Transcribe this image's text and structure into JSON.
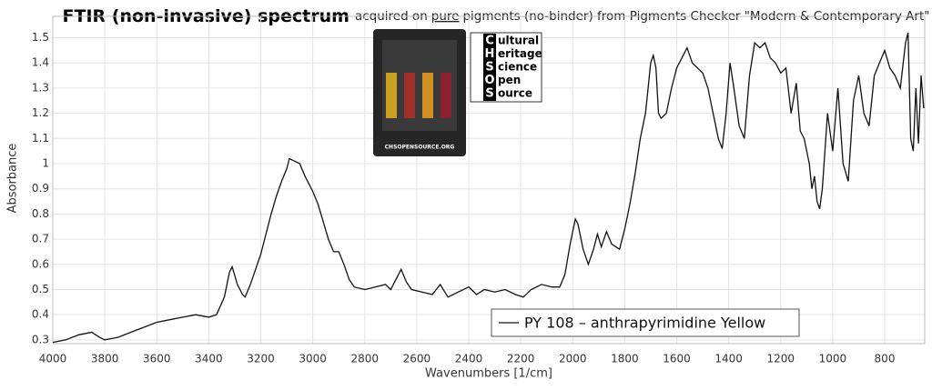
{
  "chart_data": {
    "type": "line",
    "title_bold": "FTIR (non-invasive) spectrum",
    "title_parts": [
      "acquired on",
      "pure",
      "pigments (no-binder) from Pigments Checker \"Modern & Contemporary Art\""
    ],
    "x_label": "Wavenumbers [1/cm]",
    "y_label": "Absorbance",
    "x": [
      4000,
      3950,
      3900,
      3850,
      3820,
      3800,
      3750,
      3700,
      3650,
      3600,
      3550,
      3500,
      3450,
      3400,
      3370,
      3340,
      3320,
      3310,
      3290,
      3270,
      3260,
      3240,
      3220,
      3200,
      3180,
      3160,
      3140,
      3120,
      3100,
      3090,
      3070,
      3050,
      3030,
      3000,
      2980,
      2960,
      2940,
      2920,
      2900,
      2880,
      2860,
      2840,
      2800,
      2760,
      2720,
      2700,
      2680,
      2660,
      2640,
      2620,
      2580,
      2540,
      2510,
      2480,
      2440,
      2400,
      2370,
      2340,
      2300,
      2260,
      2220,
      2190,
      2160,
      2120,
      2080,
      2050,
      2030,
      2010,
      1990,
      1980,
      1960,
      1940,
      1920,
      1905,
      1890,
      1870,
      1850,
      1820,
      1800,
      1780,
      1760,
      1740,
      1720,
      1710,
      1700,
      1690,
      1680,
      1670,
      1660,
      1640,
      1620,
      1600,
      1580,
      1560,
      1540,
      1520,
      1500,
      1480,
      1460,
      1440,
      1425,
      1410,
      1395,
      1380,
      1360,
      1340,
      1320,
      1300,
      1280,
      1260,
      1240,
      1220,
      1200,
      1180,
      1160,
      1140,
      1125,
      1110,
      1090,
      1080,
      1070,
      1060,
      1050,
      1040,
      1020,
      1000,
      980,
      960,
      940,
      920,
      900,
      880,
      860,
      840,
      820,
      800,
      780,
      760,
      740,
      720,
      710,
      700,
      690,
      680,
      670,
      660,
      650
    ],
    "series": [
      {
        "name": "PY 108 – anthrapyrimidine Yellow",
        "color": "#111111",
        "values": [
          0.29,
          0.3,
          0.32,
          0.33,
          0.31,
          0.3,
          0.31,
          0.33,
          0.35,
          0.37,
          0.38,
          0.39,
          0.4,
          0.39,
          0.4,
          0.47,
          0.57,
          0.59,
          0.52,
          0.48,
          0.47,
          0.52,
          0.58,
          0.64,
          0.72,
          0.8,
          0.87,
          0.93,
          0.98,
          1.02,
          1.01,
          1.0,
          0.95,
          0.89,
          0.84,
          0.77,
          0.7,
          0.65,
          0.65,
          0.6,
          0.54,
          0.51,
          0.5,
          0.51,
          0.52,
          0.5,
          0.54,
          0.58,
          0.53,
          0.5,
          0.49,
          0.48,
          0.52,
          0.47,
          0.49,
          0.51,
          0.48,
          0.5,
          0.49,
          0.5,
          0.48,
          0.47,
          0.5,
          0.52,
          0.51,
          0.51,
          0.56,
          0.68,
          0.78,
          0.76,
          0.66,
          0.6,
          0.66,
          0.72,
          0.67,
          0.73,
          0.68,
          0.66,
          0.74,
          0.84,
          0.96,
          1.1,
          1.2,
          1.3,
          1.4,
          1.43,
          1.38,
          1.2,
          1.18,
          1.2,
          1.3,
          1.38,
          1.42,
          1.46,
          1.4,
          1.38,
          1.36,
          1.3,
          1.2,
          1.1,
          1.06,
          1.2,
          1.4,
          1.3,
          1.15,
          1.1,
          1.35,
          1.48,
          1.46,
          1.48,
          1.42,
          1.4,
          1.36,
          1.38,
          1.2,
          1.32,
          1.13,
          1.1,
          1.0,
          0.9,
          0.95,
          0.85,
          0.82,
          0.9,
          1.2,
          1.05,
          1.3,
          1.0,
          0.93,
          1.25,
          1.35,
          1.2,
          1.15,
          1.35,
          1.4,
          1.45,
          1.38,
          1.35,
          1.3,
          1.48,
          1.52,
          1.1,
          1.05,
          1.3,
          1.08,
          1.35,
          1.22
        ]
      }
    ],
    "xlim": [
      4000,
      646
    ],
    "xticks": [
      4000,
      3800,
      3600,
      3400,
      3200,
      3000,
      2800,
      2600,
      2400,
      2200,
      2000,
      1800,
      1600,
      1400,
      1200,
      1000,
      800
    ],
    "ylim": [
      0.285,
      1.585
    ],
    "yticks": [
      0.3,
      0.4,
      0.5,
      0.6,
      0.7,
      0.8,
      0.9,
      1,
      1.1,
      1.2,
      1.3,
      1.4,
      1.5
    ],
    "grid": true,
    "legend": "bottom-center",
    "logo": {
      "letters": [
        "C",
        "H",
        "S",
        "O",
        "S"
      ],
      "rests": [
        "ultural",
        "eritage",
        "cience",
        "pen",
        "ource"
      ],
      "card_text": "CHSOPENSOURCE.ORG"
    }
  }
}
